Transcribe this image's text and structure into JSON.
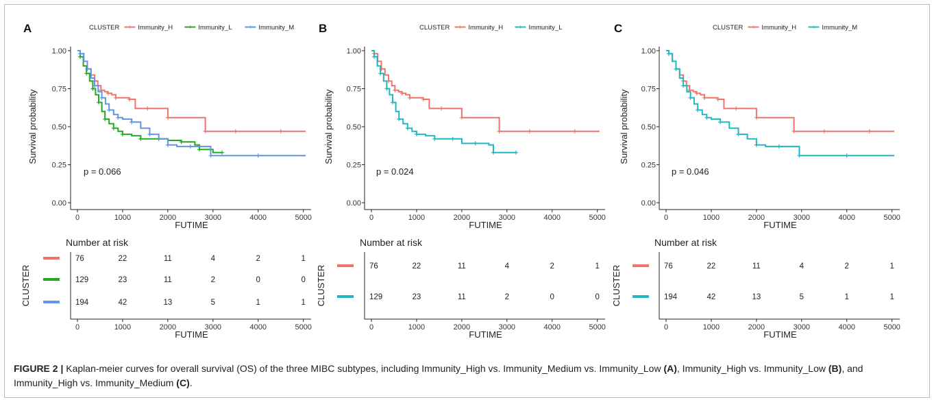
{
  "panels": [
    {
      "letter": "A",
      "legend_title": "CLUSTER",
      "xlabel": "FUTIME",
      "ylabel": "Survival probability",
      "pvalue": "p = 0.066",
      "x_ticks": [
        "0",
        "1000",
        "2000",
        "3000",
        "4000",
        "5000"
      ],
      "y_ticks": [
        "0.00",
        "0.25",
        "0.50",
        "0.75",
        "1.00"
      ],
      "risk_title": "Number at risk",
      "risk_ylabel": "CLUSTER",
      "risk_xlabel": "FUTIME",
      "series": [
        {
          "name": "Immunity_H",
          "color": "#f0736b",
          "x": [
            0,
            60,
            140,
            220,
            300,
            380,
            450,
            520,
            600,
            680,
            760,
            850,
            1000,
            1150,
            1280,
            1550,
            1800,
            2000,
            2500,
            2830,
            2900,
            3500,
            4000,
            4500,
            5050
          ],
          "y": [
            1.0,
            0.98,
            0.93,
            0.88,
            0.84,
            0.8,
            0.77,
            0.74,
            0.73,
            0.72,
            0.71,
            0.69,
            0.69,
            0.68,
            0.62,
            0.62,
            0.62,
            0.56,
            0.56,
            0.47,
            0.47,
            0.47,
            0.47,
            0.47,
            0.47
          ],
          "risk": [
            "76",
            "22",
            "11",
            "4",
            "2",
            "1"
          ]
        },
        {
          "name": "Immunity_L",
          "color": "#21a821",
          "x": [
            0,
            60,
            130,
            200,
            270,
            340,
            400,
            470,
            540,
            610,
            700,
            800,
            900,
            1000,
            1200,
            1400,
            1600,
            1800,
            2000,
            2300,
            2600,
            2700,
            3000,
            3200
          ],
          "y": [
            1.0,
            0.96,
            0.9,
            0.85,
            0.8,
            0.75,
            0.71,
            0.66,
            0.6,
            0.55,
            0.52,
            0.49,
            0.47,
            0.45,
            0.44,
            0.42,
            0.42,
            0.42,
            0.41,
            0.4,
            0.38,
            0.35,
            0.33,
            0.33
          ],
          "risk": [
            "129",
            "23",
            "11",
            "2",
            "0",
            "0"
          ]
        },
        {
          "name": "Immunity_M",
          "color": "#6193e8",
          "x": [
            0,
            60,
            140,
            220,
            300,
            380,
            460,
            540,
            620,
            700,
            800,
            900,
            1000,
            1200,
            1400,
            1600,
            1800,
            2000,
            2200,
            2500,
            2700,
            2950,
            3500,
            4000,
            5050
          ],
          "y": [
            1.0,
            0.98,
            0.93,
            0.88,
            0.82,
            0.77,
            0.73,
            0.69,
            0.65,
            0.61,
            0.58,
            0.56,
            0.55,
            0.53,
            0.49,
            0.45,
            0.42,
            0.38,
            0.37,
            0.37,
            0.37,
            0.31,
            0.31,
            0.31,
            0.31
          ],
          "risk": [
            "194",
            "42",
            "13",
            "5",
            "1",
            "1"
          ]
        }
      ]
    },
    {
      "letter": "B",
      "legend_title": "CLUSTER",
      "xlabel": "FUTIME",
      "ylabel": "Survival probability",
      "pvalue": "p = 0.024",
      "x_ticks": [
        "0",
        "1000",
        "2000",
        "3000",
        "4000",
        "5000"
      ],
      "y_ticks": [
        "0.00",
        "0.25",
        "0.50",
        "0.75",
        "1.00"
      ],
      "risk_title": "Number at risk",
      "risk_ylabel": "CLUSTER",
      "risk_xlabel": "FUTIME",
      "series": [
        {
          "name": "Immunity_H",
          "color": "#f0736b",
          "x": [
            0,
            60,
            140,
            220,
            300,
            380,
            450,
            520,
            600,
            680,
            760,
            850,
            1000,
            1150,
            1280,
            1550,
            1800,
            2000,
            2500,
            2830,
            2900,
            3500,
            4000,
            4500,
            5050
          ],
          "y": [
            1.0,
            0.98,
            0.93,
            0.88,
            0.84,
            0.8,
            0.77,
            0.74,
            0.73,
            0.72,
            0.71,
            0.69,
            0.69,
            0.68,
            0.62,
            0.62,
            0.62,
            0.56,
            0.56,
            0.47,
            0.47,
            0.47,
            0.47,
            0.47,
            0.47
          ],
          "risk": [
            "76",
            "22",
            "11",
            "4",
            "2",
            "1"
          ]
        },
        {
          "name": "Immunity_L",
          "color": "#1fb8c0",
          "x": [
            0,
            60,
            130,
            200,
            270,
            340,
            400,
            470,
            540,
            610,
            700,
            800,
            900,
            1000,
            1200,
            1400,
            1600,
            1800,
            2000,
            2300,
            2600,
            2700,
            3000,
            3200
          ],
          "y": [
            1.0,
            0.96,
            0.9,
            0.85,
            0.8,
            0.75,
            0.71,
            0.66,
            0.6,
            0.55,
            0.52,
            0.49,
            0.47,
            0.45,
            0.44,
            0.42,
            0.42,
            0.42,
            0.39,
            0.39,
            0.38,
            0.33,
            0.33,
            0.33
          ],
          "risk": [
            "129",
            "23",
            "11",
            "2",
            "0",
            "0"
          ]
        }
      ]
    },
    {
      "letter": "C",
      "legend_title": "CLUSTER",
      "xlabel": "FUTIME",
      "ylabel": "Survival probability",
      "pvalue": "p = 0.046",
      "x_ticks": [
        "0",
        "1000",
        "2000",
        "3000",
        "4000",
        "5000"
      ],
      "y_ticks": [
        "0.00",
        "0.25",
        "0.50",
        "0.75",
        "1.00"
      ],
      "risk_title": "Number at risk",
      "risk_ylabel": "CLUSTER",
      "risk_xlabel": "FUTIME",
      "series": [
        {
          "name": "Immunity_H",
          "color": "#f0736b",
          "x": [
            0,
            60,
            140,
            220,
            300,
            380,
            450,
            520,
            600,
            680,
            760,
            850,
            1000,
            1150,
            1280,
            1550,
            1800,
            2000,
            2500,
            2830,
            2900,
            3500,
            4000,
            4500,
            5050
          ],
          "y": [
            1.0,
            0.98,
            0.93,
            0.88,
            0.84,
            0.8,
            0.77,
            0.74,
            0.73,
            0.72,
            0.71,
            0.69,
            0.69,
            0.68,
            0.62,
            0.62,
            0.62,
            0.56,
            0.56,
            0.47,
            0.47,
            0.47,
            0.47,
            0.47,
            0.47
          ],
          "risk": [
            "76",
            "22",
            "11",
            "4",
            "2",
            "1"
          ]
        },
        {
          "name": "Immunity_M",
          "color": "#1fb8c0",
          "x": [
            0,
            60,
            140,
            220,
            300,
            380,
            460,
            540,
            620,
            700,
            800,
            900,
            1000,
            1200,
            1400,
            1600,
            1800,
            2000,
            2200,
            2500,
            2700,
            2950,
            3500,
            4000,
            5050
          ],
          "y": [
            1.0,
            0.98,
            0.93,
            0.88,
            0.82,
            0.77,
            0.73,
            0.69,
            0.65,
            0.61,
            0.58,
            0.56,
            0.55,
            0.53,
            0.49,
            0.45,
            0.42,
            0.38,
            0.37,
            0.37,
            0.37,
            0.31,
            0.31,
            0.31,
            0.31
          ],
          "risk": [
            "194",
            "42",
            "13",
            "5",
            "1",
            "1"
          ]
        }
      ]
    }
  ],
  "chart_data": [
    {
      "type": "line",
      "title": "",
      "xlabel": "FUTIME",
      "ylabel": "Survival probability",
      "xlim": [
        0,
        5050
      ],
      "ylim": [
        0,
        1
      ],
      "legend": "top",
      "annotation": "p = 0.066",
      "series": [
        {
          "name": "Immunity_H"
        },
        {
          "name": "Immunity_L"
        },
        {
          "name": "Immunity_M"
        }
      ]
    },
    {
      "type": "line",
      "title": "",
      "xlabel": "FUTIME",
      "ylabel": "Survival probability",
      "xlim": [
        0,
        5050
      ],
      "ylim": [
        0,
        1
      ],
      "legend": "top",
      "annotation": "p = 0.024",
      "series": [
        {
          "name": "Immunity_H"
        },
        {
          "name": "Immunity_L"
        }
      ]
    },
    {
      "type": "line",
      "title": "",
      "xlabel": "FUTIME",
      "ylabel": "Survival probability",
      "xlim": [
        0,
        5050
      ],
      "ylim": [
        0,
        1
      ],
      "legend": "top",
      "annotation": "p = 0.046",
      "series": [
        {
          "name": "Immunity_H"
        },
        {
          "name": "Immunity_M"
        }
      ]
    }
  ],
  "caption": {
    "label": "FIGURE 2 |",
    "part1": " Kaplan-meier curves for overall survival (OS) of the three MIBC subtypes, including Immunity_High vs. Immunity_Medium vs. Immunity_Low ",
    "ref_a": "(A)",
    "part2": ", Immunity_High vs. Immunity_Low ",
    "ref_b": "(B)",
    "part3": ", and Immunity_High vs. Immunity_Medium ",
    "ref_c": "(C)",
    "part4": "."
  }
}
